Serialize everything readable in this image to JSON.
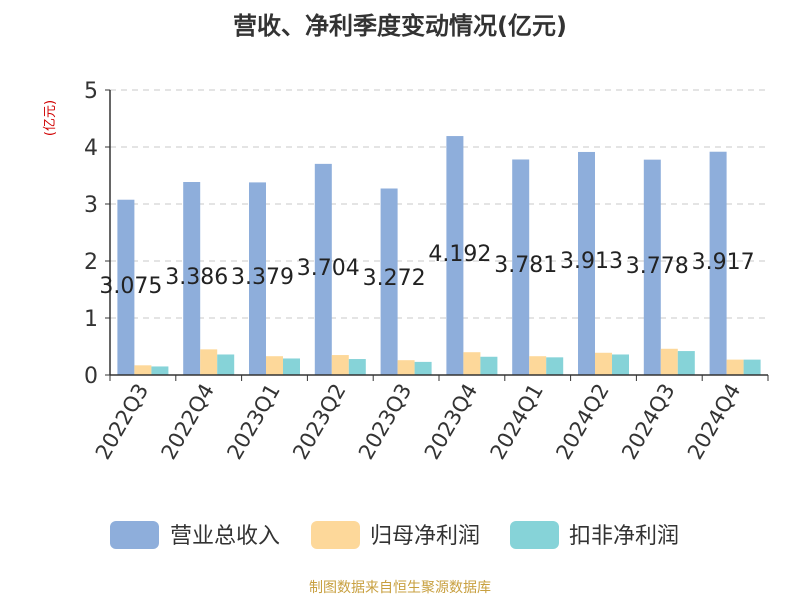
{
  "chart_data": {
    "type": "bar",
    "title": "营收、净利季度变动情况(亿元)",
    "ylabel": "(亿元)",
    "xlabel": "",
    "ylim": [
      0,
      5
    ],
    "yticks": [
      0,
      1,
      2,
      3,
      4,
      5
    ],
    "grid": true,
    "legend_position": "bottom",
    "categories": [
      "2022Q3",
      "2022Q4",
      "2023Q1",
      "2023Q2",
      "2023Q3",
      "2023Q4",
      "2024Q1",
      "2024Q2",
      "2024Q3",
      "2024Q4"
    ],
    "series": [
      {
        "name": "营业总收入",
        "color": "#8eaedb",
        "values": [
          3.075,
          3.386,
          3.379,
          3.704,
          3.272,
          4.192,
          3.781,
          3.913,
          3.778,
          3.917
        ],
        "labels": [
          "3.075",
          "3.386",
          "3.379",
          "3.704",
          "3.272",
          "4.192",
          "3.781",
          "3.913",
          "3.778",
          "3.917"
        ]
      },
      {
        "name": "归母净利润",
        "color": "#fdd89a",
        "values": [
          0.17,
          0.45,
          0.33,
          0.35,
          0.26,
          0.4,
          0.33,
          0.39,
          0.46,
          0.27
        ]
      },
      {
        "name": "扣非净利润",
        "color": "#86d3d8",
        "values": [
          0.15,
          0.36,
          0.29,
          0.28,
          0.23,
          0.32,
          0.31,
          0.36,
          0.42,
          0.27
        ]
      }
    ],
    "source_note": "制图数据来自恒生聚源数据库"
  }
}
